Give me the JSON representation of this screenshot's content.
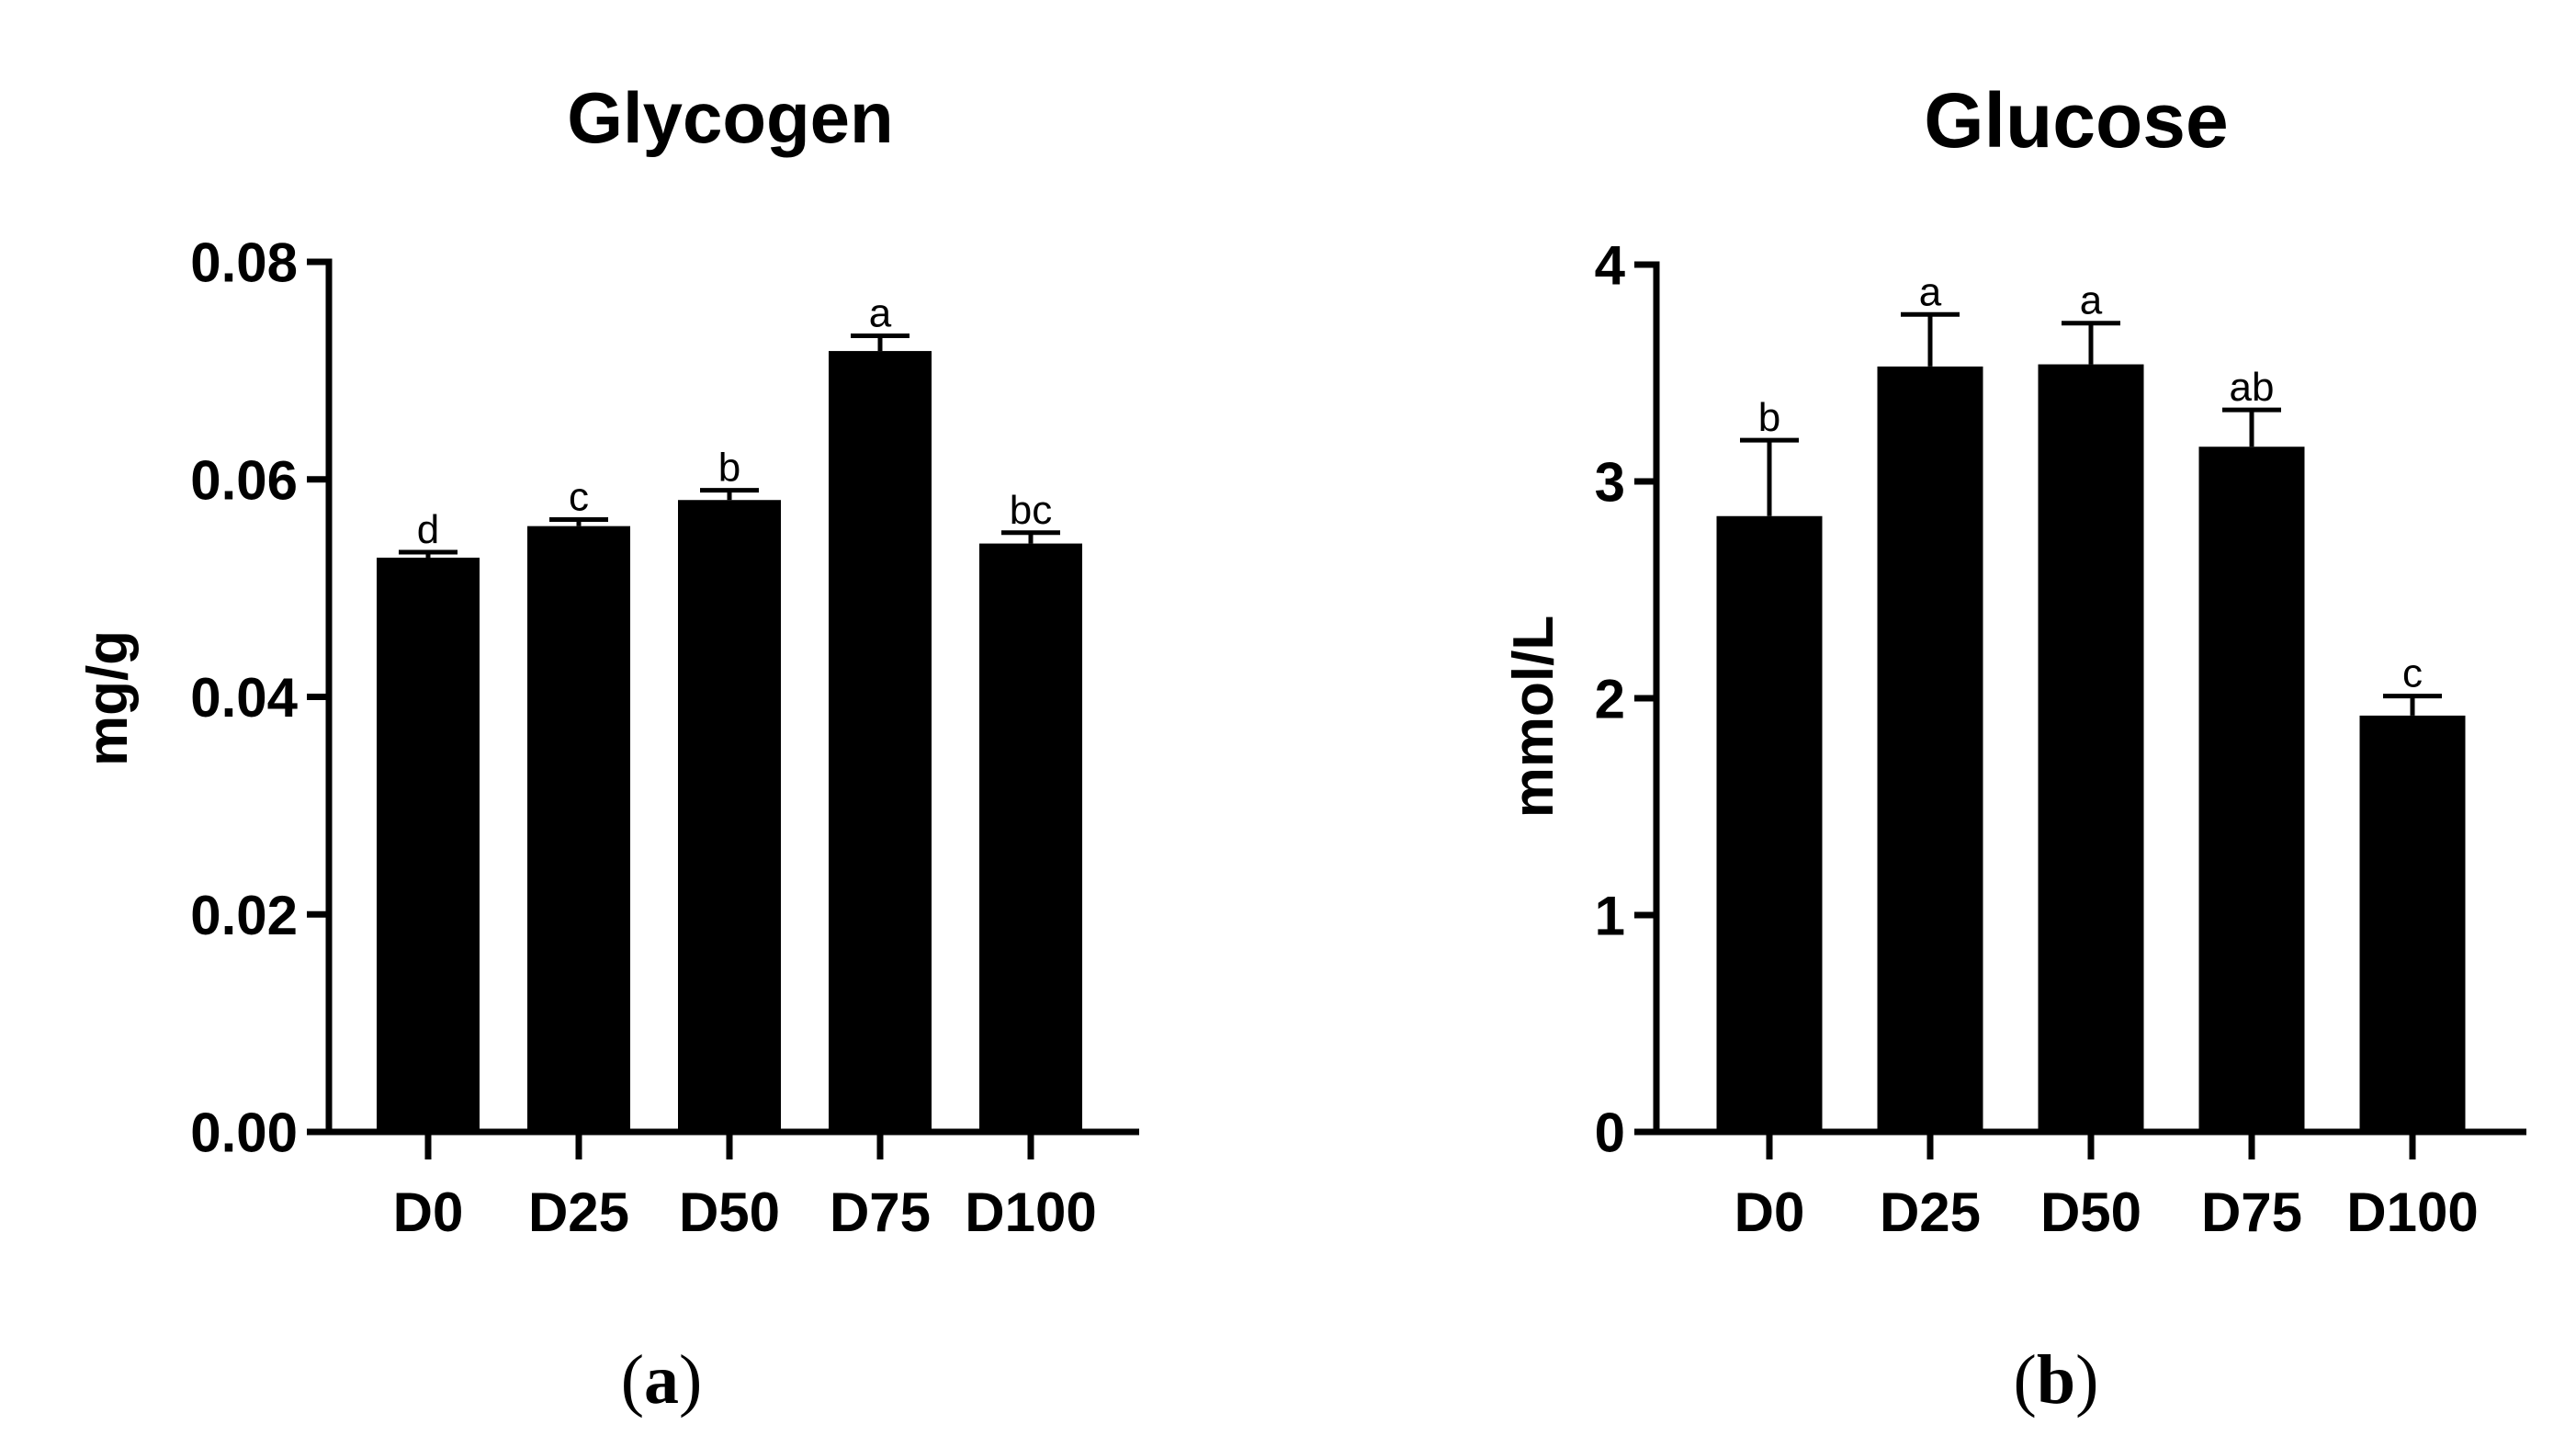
{
  "chart_data": [
    {
      "type": "bar",
      "title": "Glycogen",
      "xlabel": "",
      "ylabel": "mg/g",
      "categories": [
        "D0",
        "D25",
        "D50",
        "D75",
        "D100"
      ],
      "values": [
        0.0528,
        0.0557,
        0.0581,
        0.0718,
        0.0541
      ],
      "errors": [
        0.0005,
        0.0006,
        0.0009,
        0.0014,
        0.001
      ],
      "significance": [
        "d",
        "c",
        "b",
        "a",
        "bc"
      ],
      "ylim": [
        0,
        0.08
      ],
      "yticks": [
        0.0,
        0.02,
        0.04,
        0.06,
        0.08
      ],
      "ytick_labels": [
        "0.00",
        "0.02",
        "0.04",
        "0.06",
        "0.08"
      ],
      "caption": "a",
      "bar_color": "#000000"
    },
    {
      "type": "bar",
      "title": "Glucose",
      "xlabel": "",
      "ylabel": "mmol/L",
      "categories": [
        "D0",
        "D25",
        "D50",
        "D75",
        "D100"
      ],
      "values": [
        2.84,
        3.53,
        3.54,
        3.16,
        1.92
      ],
      "errors": [
        0.35,
        0.24,
        0.19,
        0.17,
        0.09
      ],
      "significance": [
        "b",
        "a",
        "a",
        "ab",
        "c"
      ],
      "ylim": [
        0,
        4
      ],
      "yticks": [
        0,
        1,
        2,
        3,
        4
      ],
      "ytick_labels": [
        "0",
        "1",
        "2",
        "3",
        "4"
      ],
      "caption": "b",
      "bar_color": "#000000"
    }
  ]
}
